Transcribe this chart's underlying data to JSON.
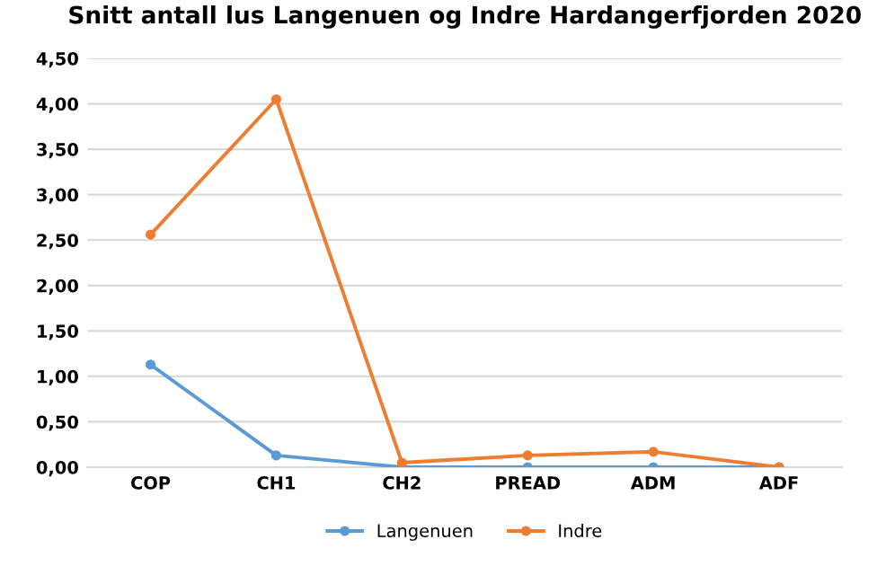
{
  "chart_data": {
    "type": "line",
    "title": "Snitt antall lus Langenuen og Indre Hardangerfjorden 2020",
    "categories": [
      "COP",
      "CH1",
      "CH2",
      "PREAD",
      "ADM",
      "ADF"
    ],
    "series": [
      {
        "name": "Langenuen",
        "color": "#5b9bd5",
        "values": [
          1.13,
          0.13,
          0.0,
          0.0,
          0.0,
          0.0
        ]
      },
      {
        "name": "Indre",
        "color": "#ed7d31",
        "values": [
          2.56,
          4.05,
          0.05,
          0.13,
          0.17,
          0.0
        ]
      }
    ],
    "ylim": [
      0,
      4.5
    ],
    "yticks": [
      {
        "value": 0,
        "label": "0,00"
      },
      {
        "value": 0.5,
        "label": "0,50"
      },
      {
        "value": 1,
        "label": "1,00"
      },
      {
        "value": 1.5,
        "label": "1,50"
      },
      {
        "value": 2,
        "label": "2,00"
      },
      {
        "value": 2.5,
        "label": "2,50"
      },
      {
        "value": 3,
        "label": "3,00"
      },
      {
        "value": 3.5,
        "label": "3,50"
      },
      {
        "value": 4,
        "label": "4,00"
      },
      {
        "value": 4.5,
        "label": "4,50"
      }
    ],
    "grid": "y",
    "legend": "bottom",
    "marker": "circle",
    "line_style": "solid"
  }
}
